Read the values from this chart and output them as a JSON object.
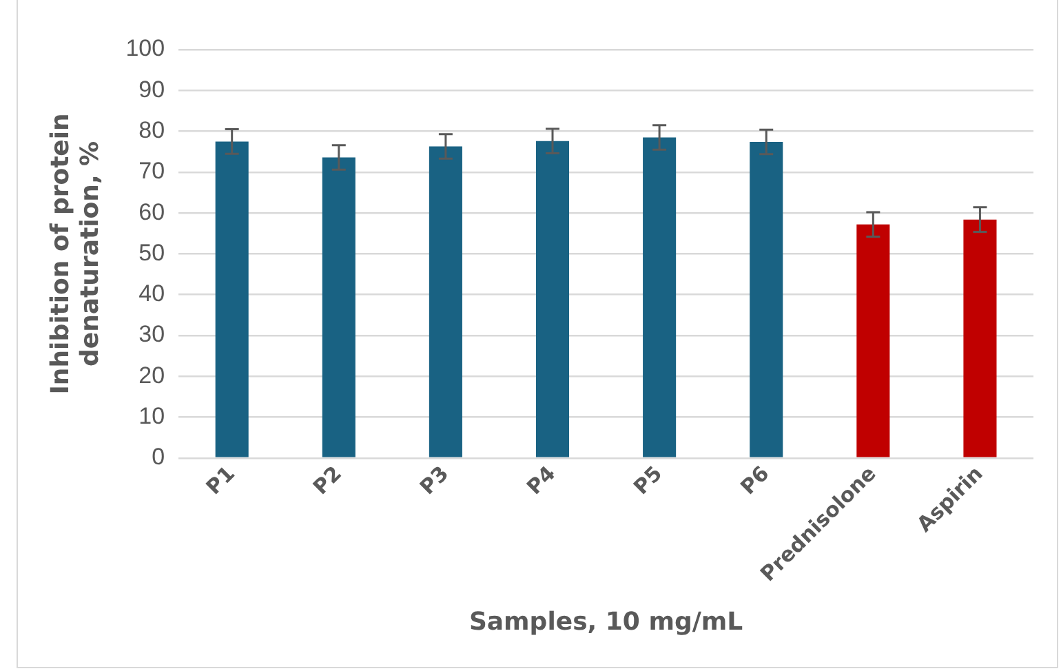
{
  "chart_data": {
    "type": "bar",
    "xlabel": "Samples, 10 mg/mL",
    "ylabel": "Inhibition of protein denaturation, %",
    "categories": [
      "P1",
      "P2",
      "P3",
      "P4",
      "P5",
      "P6",
      "Prednisolone",
      "Aspirin"
    ],
    "values": [
      77.5,
      73.6,
      76.3,
      77.6,
      78.5,
      77.4,
      57.2,
      58.4
    ],
    "colors": [
      "#196283",
      "#196283",
      "#196283",
      "#196283",
      "#196283",
      "#196283",
      "#c00000",
      "#c00000"
    ],
    "errors": [
      3,
      3,
      3,
      3,
      3,
      3,
      3,
      3
    ],
    "ylim": [
      0,
      100
    ],
    "yticks": [
      0,
      10,
      20,
      30,
      40,
      50,
      60,
      70,
      80,
      90,
      100
    ],
    "grid": "y",
    "legend": false
  }
}
